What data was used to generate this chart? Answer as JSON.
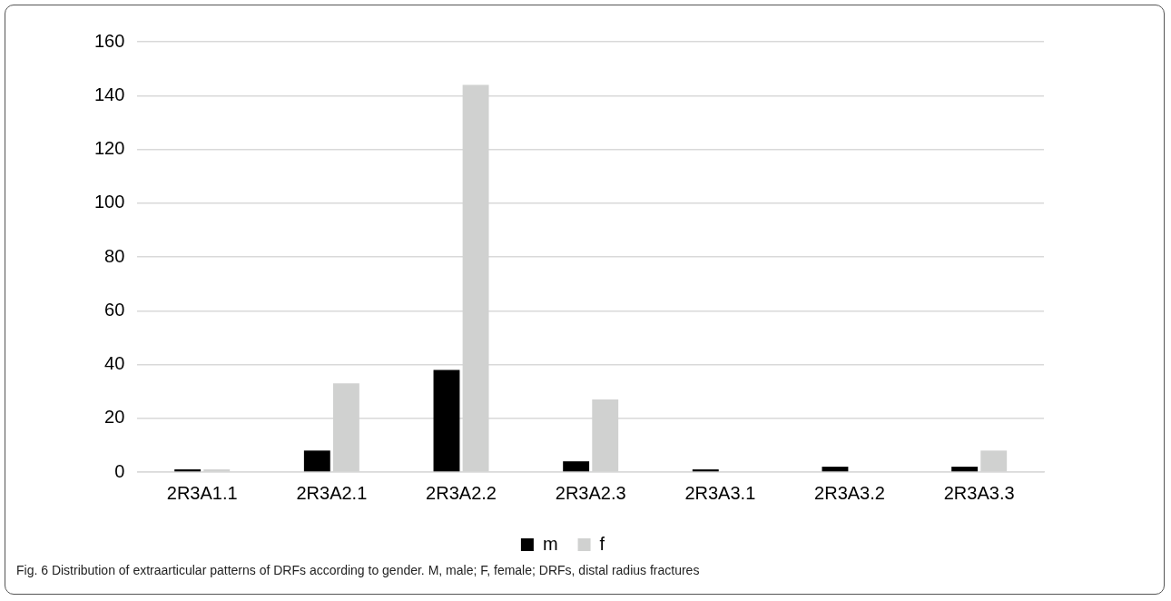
{
  "chart_data": {
    "type": "bar",
    "categories": [
      "2R3A1.1",
      "2R3A2.1",
      "2R3A2.2",
      "2R3A2.3",
      "2R3A3.1",
      "2R3A3.2",
      "2R3A3.3"
    ],
    "series": [
      {
        "name": "m",
        "color": "#000000",
        "values": [
          1,
          8,
          38,
          4,
          1,
          2,
          2
        ]
      },
      {
        "name": "f",
        "color": "#d0d1d0",
        "values": [
          1,
          33,
          144,
          27,
          0,
          0,
          8
        ]
      }
    ],
    "ylim": [
      0,
      160
    ],
    "yticks": [
      0,
      20,
      40,
      60,
      80,
      100,
      120,
      140,
      160
    ],
    "grid": "y",
    "legend": "bottom",
    "annotations": [
      "Fig. 6  Distribution of extraarticular patterns of DRFs according to gender. M, male; F, female; DRFs, distal radius fractures"
    ]
  }
}
